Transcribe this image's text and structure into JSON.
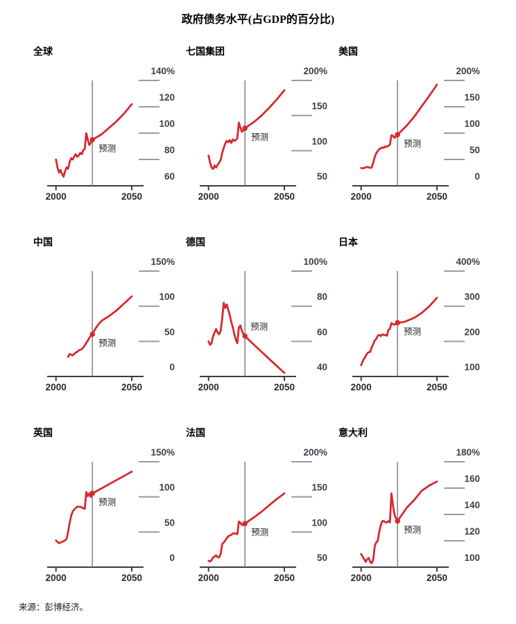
{
  "page": {
    "title": "政府债务水平(占GDP的百分比)",
    "source": "来源：彭博经济。"
  },
  "colors": {
    "line": "#d7282e",
    "axis": "#3c3c3c",
    "vline": "#7f7f7f",
    "y_dash": "#9a9a9a",
    "y_label": "#394149",
    "x_label": "#26282b",
    "text": "#1a1a1a"
  },
  "chart_data": [
    {
      "type": "line",
      "title": "全球",
      "y_unit": "%",
      "y_ticks": [
        60,
        80,
        100,
        120,
        140
      ],
      "x_ticks": [
        2000,
        2050
      ],
      "forecast_start": 2024,
      "forecast_label": "预测",
      "series": [
        [
          2000,
          80
        ],
        [
          2001,
          74
        ],
        [
          2002,
          70
        ],
        [
          2003,
          72
        ],
        [
          2004,
          69
        ],
        [
          2005,
          67
        ],
        [
          2006,
          71
        ],
        [
          2007,
          74
        ],
        [
          2008,
          73
        ],
        [
          2009,
          78
        ],
        [
          2010,
          81
        ],
        [
          2011,
          80
        ],
        [
          2012,
          82
        ],
        [
          2013,
          84
        ],
        [
          2014,
          82
        ],
        [
          2015,
          83
        ],
        [
          2016,
          85
        ],
        [
          2017,
          84
        ],
        [
          2018,
          87
        ],
        [
          2019,
          88
        ],
        [
          2020,
          100
        ],
        [
          2021,
          95
        ],
        [
          2022,
          91
        ],
        [
          2023,
          93
        ],
        [
          2024,
          95
        ],
        [
          2027,
          97
        ],
        [
          2030,
          99
        ],
        [
          2035,
          104
        ],
        [
          2040,
          109
        ],
        [
          2045,
          115
        ],
        [
          2050,
          122
        ]
      ]
    },
    {
      "type": "line",
      "title": "七国集团",
      "y_unit": "%",
      "y_ticks": [
        50,
        100,
        150,
        200
      ],
      "x_ticks": [
        2000,
        2050
      ],
      "forecast_start": 2024,
      "forecast_label": "预测",
      "series": [
        [
          2000,
          93
        ],
        [
          2001,
          83
        ],
        [
          2002,
          76
        ],
        [
          2003,
          74
        ],
        [
          2004,
          79
        ],
        [
          2005,
          76
        ],
        [
          2006,
          80
        ],
        [
          2007,
          83
        ],
        [
          2008,
          87
        ],
        [
          2009,
          97
        ],
        [
          2010,
          104
        ],
        [
          2011,
          110
        ],
        [
          2012,
          114
        ],
        [
          2013,
          112
        ],
        [
          2014,
          115
        ],
        [
          2015,
          111
        ],
        [
          2016,
          116
        ],
        [
          2017,
          114
        ],
        [
          2018,
          115
        ],
        [
          2019,
          118
        ],
        [
          2020,
          140
        ],
        [
          2021,
          133
        ],
        [
          2022,
          127
        ],
        [
          2023,
          129
        ],
        [
          2024,
          132
        ],
        [
          2030,
          141
        ],
        [
          2035,
          150
        ],
        [
          2040,
          161
        ],
        [
          2045,
          173
        ],
        [
          2050,
          186
        ]
      ]
    },
    {
      "type": "line",
      "title": "美国",
      "y_unit": "%",
      "y_ticks": [
        0,
        50,
        100,
        150,
        200
      ],
      "x_ticks": [
        2000,
        2050
      ],
      "forecast_start": 2024,
      "forecast_label": "预测",
      "series": [
        [
          2000,
          34
        ],
        [
          2001,
          33
        ],
        [
          2002,
          34
        ],
        [
          2003,
          35
        ],
        [
          2004,
          36
        ],
        [
          2005,
          35
        ],
        [
          2006,
          34
        ],
        [
          2007,
          35
        ],
        [
          2008,
          44
        ],
        [
          2009,
          55
        ],
        [
          2010,
          62
        ],
        [
          2011,
          66
        ],
        [
          2012,
          70
        ],
        [
          2013,
          71
        ],
        [
          2014,
          73
        ],
        [
          2015,
          72
        ],
        [
          2016,
          75
        ],
        [
          2017,
          74
        ],
        [
          2018,
          76
        ],
        [
          2019,
          78
        ],
        [
          2020,
          96
        ],
        [
          2021,
          95
        ],
        [
          2022,
          91
        ],
        [
          2023,
          94
        ],
        [
          2024,
          97
        ],
        [
          2030,
          114
        ],
        [
          2035,
          131
        ],
        [
          2040,
          151
        ],
        [
          2045,
          171
        ],
        [
          2050,
          192
        ]
      ]
    },
    {
      "type": "line",
      "title": "中国",
      "y_unit": "%",
      "y_ticks": [
        0,
        50,
        100,
        150
      ],
      "x_ticks": [
        2000,
        2050
      ],
      "forecast_start": 2024,
      "forecast_label": "预测",
      "series": [
        [
          2008,
          28
        ],
        [
          2009,
          32
        ],
        [
          2010,
          31
        ],
        [
          2011,
          30
        ],
        [
          2012,
          32
        ],
        [
          2013,
          34
        ],
        [
          2014,
          35
        ],
        [
          2015,
          37
        ],
        [
          2016,
          38
        ],
        [
          2017,
          39
        ],
        [
          2018,
          41
        ],
        [
          2019,
          44
        ],
        [
          2020,
          48
        ],
        [
          2021,
          51
        ],
        [
          2022,
          55
        ],
        [
          2023,
          58
        ],
        [
          2024,
          60
        ],
        [
          2026,
          68
        ],
        [
          2028,
          74
        ],
        [
          2030,
          79
        ],
        [
          2035,
          86
        ],
        [
          2040,
          94
        ],
        [
          2045,
          104
        ],
        [
          2050,
          114
        ]
      ]
    },
    {
      "type": "line",
      "title": "德国",
      "y_unit": "%",
      "y_ticks": [
        40,
        60,
        80,
        100
      ],
      "x_ticks": [
        2000,
        2050
      ],
      "forecast_start": 2024,
      "forecast_label": "预测",
      "series": [
        [
          2000,
          60
        ],
        [
          2001,
          58
        ],
        [
          2002,
          59
        ],
        [
          2003,
          63
        ],
        [
          2004,
          65
        ],
        [
          2005,
          67
        ],
        [
          2006,
          65
        ],
        [
          2007,
          64
        ],
        [
          2008,
          66
        ],
        [
          2009,
          73
        ],
        [
          2010,
          82
        ],
        [
          2011,
          79
        ],
        [
          2012,
          81
        ],
        [
          2013,
          78
        ],
        [
          2014,
          75
        ],
        [
          2015,
          71
        ],
        [
          2016,
          68
        ],
        [
          2017,
          64
        ],
        [
          2018,
          61
        ],
        [
          2019,
          59
        ],
        [
          2020,
          68
        ],
        [
          2021,
          69
        ],
        [
          2022,
          66
        ],
        [
          2023,
          64
        ],
        [
          2024,
          63
        ],
        [
          2030,
          58
        ],
        [
          2035,
          54
        ],
        [
          2040,
          50
        ],
        [
          2045,
          46
        ],
        [
          2050,
          42
        ]
      ]
    },
    {
      "type": "line",
      "title": "日本",
      "y_unit": "%",
      "y_ticks": [
        100,
        200,
        300,
        400
      ],
      "x_ticks": [
        2000,
        2050
      ],
      "forecast_start": 2024,
      "forecast_label": "预测",
      "series": [
        [
          2000,
          132
        ],
        [
          2001,
          143
        ],
        [
          2002,
          151
        ],
        [
          2003,
          158
        ],
        [
          2004,
          166
        ],
        [
          2005,
          169
        ],
        [
          2006,
          170
        ],
        [
          2007,
          183
        ],
        [
          2008,
          192
        ],
        [
          2009,
          203
        ],
        [
          2010,
          207
        ],
        [
          2011,
          216
        ],
        [
          2012,
          218
        ],
        [
          2013,
          215
        ],
        [
          2014,
          220
        ],
        [
          2015,
          218
        ],
        [
          2016,
          218
        ],
        [
          2017,
          216
        ],
        [
          2018,
          232
        ],
        [
          2019,
          236
        ],
        [
          2020,
          252
        ],
        [
          2021,
          249
        ],
        [
          2022,
          247
        ],
        [
          2023,
          250
        ],
        [
          2024,
          253
        ],
        [
          2028,
          255
        ],
        [
          2030,
          258
        ],
        [
          2035,
          267
        ],
        [
          2040,
          281
        ],
        [
          2045,
          300
        ],
        [
          2050,
          324
        ]
      ]
    },
    {
      "type": "line",
      "title": "英国",
      "y_unit": "%",
      "y_ticks": [
        0,
        50,
        100,
        150
      ],
      "x_ticks": [
        2000,
        2050
      ],
      "forecast_start": 2024,
      "forecast_label": "预测",
      "series": [
        [
          2000,
          38
        ],
        [
          2001,
          36
        ],
        [
          2002,
          34
        ],
        [
          2003,
          35
        ],
        [
          2004,
          36
        ],
        [
          2005,
          37
        ],
        [
          2006,
          38
        ],
        [
          2007,
          40
        ],
        [
          2008,
          50
        ],
        [
          2009,
          63
        ],
        [
          2010,
          73
        ],
        [
          2011,
          79
        ],
        [
          2012,
          82
        ],
        [
          2013,
          84
        ],
        [
          2014,
          86
        ],
        [
          2015,
          86
        ],
        [
          2016,
          86
        ],
        [
          2017,
          85
        ],
        [
          2018,
          84
        ],
        [
          2019,
          83
        ],
        [
          2020,
          107
        ],
        [
          2021,
          101
        ],
        [
          2022,
          105
        ],
        [
          2023,
          100
        ],
        [
          2024,
          105
        ],
        [
          2030,
          112
        ],
        [
          2035,
          118
        ],
        [
          2040,
          124
        ],
        [
          2045,
          130
        ],
        [
          2050,
          136
        ]
      ]
    },
    {
      "type": "line",
      "title": "法国",
      "y_unit": "%",
      "y_ticks": [
        50,
        100,
        150,
        200
      ],
      "x_ticks": [
        2000,
        2050
      ],
      "forecast_start": 2024,
      "forecast_label": "预测",
      "series": [
        [
          2000,
          59
        ],
        [
          2001,
          58
        ],
        [
          2002,
          60
        ],
        [
          2003,
          64
        ],
        [
          2004,
          65
        ],
        [
          2005,
          67
        ],
        [
          2006,
          64
        ],
        [
          2007,
          64
        ],
        [
          2008,
          69
        ],
        [
          2009,
          83
        ],
        [
          2010,
          85
        ],
        [
          2011,
          88
        ],
        [
          2012,
          91
        ],
        [
          2013,
          94
        ],
        [
          2014,
          95
        ],
        [
          2015,
          96
        ],
        [
          2016,
          98
        ],
        [
          2017,
          98
        ],
        [
          2018,
          98
        ],
        [
          2019,
          97
        ],
        [
          2020,
          115
        ],
        [
          2021,
          113
        ],
        [
          2022,
          110
        ],
        [
          2023,
          110
        ],
        [
          2024,
          112
        ],
        [
          2030,
          121
        ],
        [
          2035,
          129
        ],
        [
          2040,
          138
        ],
        [
          2045,
          147
        ],
        [
          2050,
          155
        ]
      ]
    },
    {
      "type": "line",
      "title": "意大利",
      "y_unit": "%",
      "y_ticks": [
        100,
        120,
        140,
        160,
        180
      ],
      "x_ticks": [
        2000,
        2050
      ],
      "forecast_start": 2024,
      "forecast_label": "预测",
      "series": [
        [
          2000,
          110
        ],
        [
          2001,
          108
        ],
        [
          2002,
          106
        ],
        [
          2003,
          104
        ],
        [
          2004,
          106
        ],
        [
          2005,
          107
        ],
        [
          2006,
          104
        ],
        [
          2007,
          103
        ],
        [
          2008,
          106
        ],
        [
          2009,
          116
        ],
        [
          2010,
          119
        ],
        [
          2011,
          120
        ],
        [
          2012,
          127
        ],
        [
          2013,
          132
        ],
        [
          2014,
          135
        ],
        [
          2015,
          135
        ],
        [
          2016,
          134
        ],
        [
          2017,
          134
        ],
        [
          2018,
          135
        ],
        [
          2019,
          134
        ],
        [
          2020,
          156
        ],
        [
          2021,
          147
        ],
        [
          2022,
          140
        ],
        [
          2023,
          137
        ],
        [
          2024,
          135
        ],
        [
          2030,
          145
        ],
        [
          2035,
          151
        ],
        [
          2040,
          158
        ],
        [
          2045,
          162
        ],
        [
          2050,
          165
        ]
      ]
    }
  ]
}
